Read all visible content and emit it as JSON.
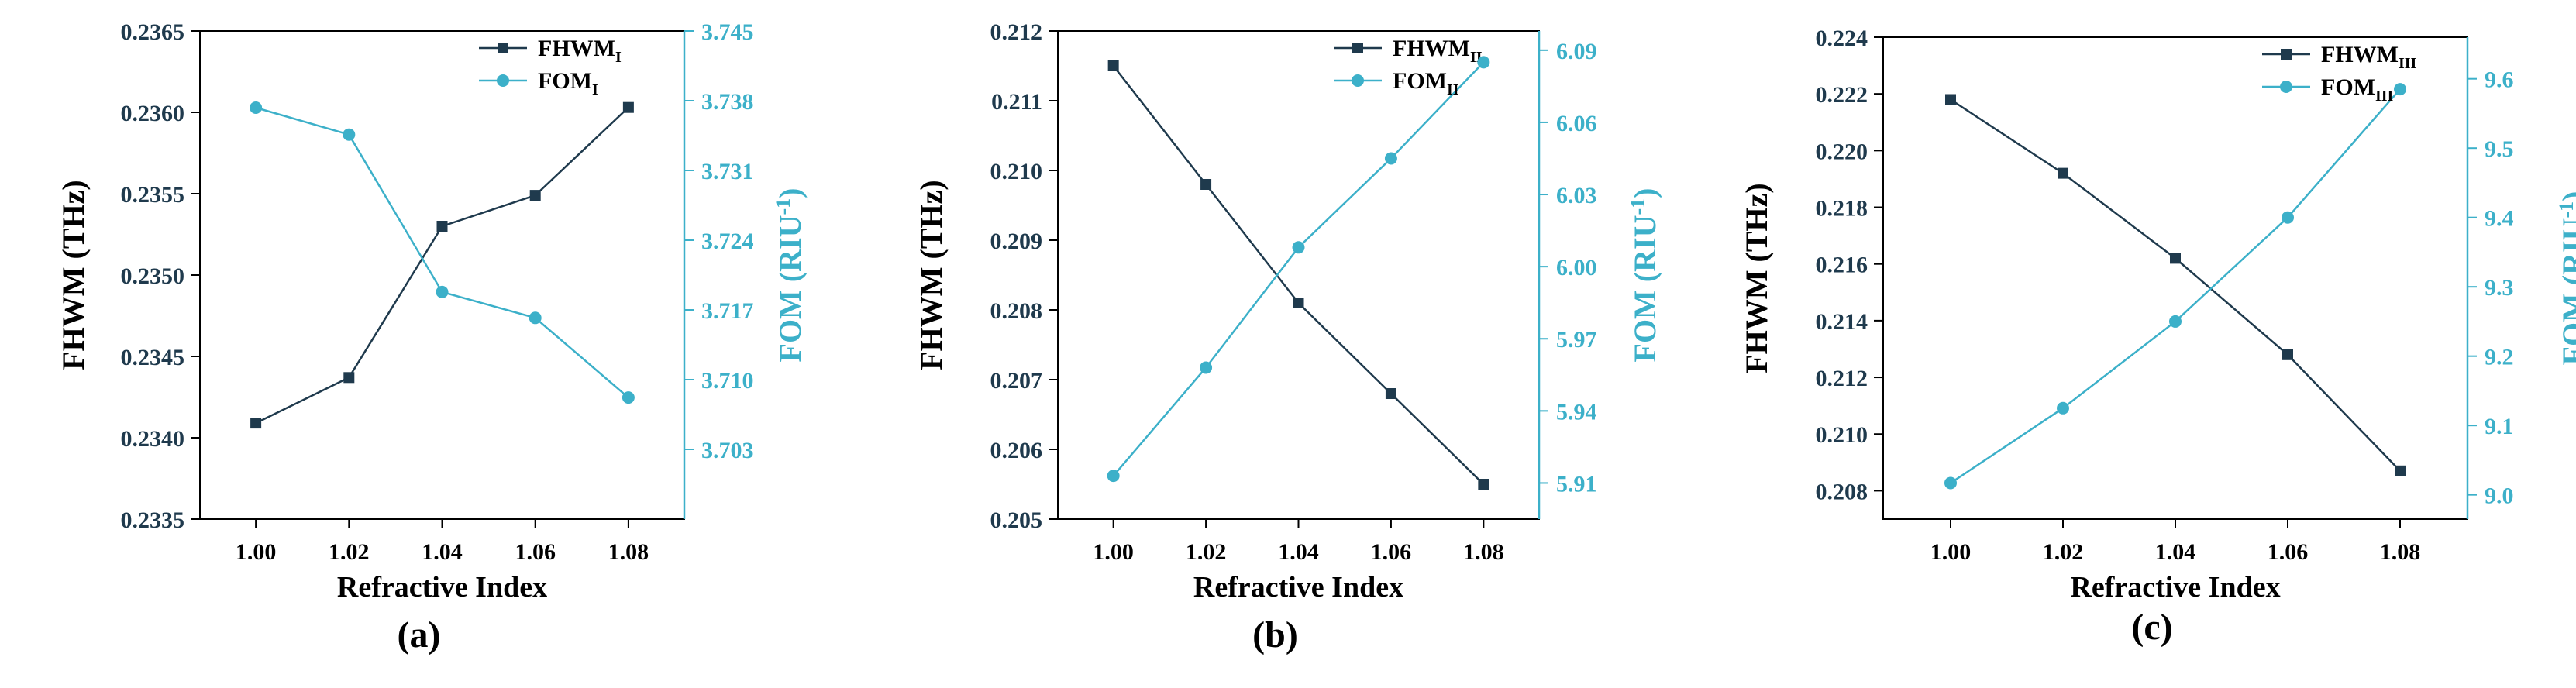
{
  "colors": {
    "left": "#1f3a4d",
    "right": "#3cb0c9",
    "axis": "#000000"
  },
  "chart_data": [
    {
      "type": "line",
      "panel_label": "(a)",
      "xlabel": "Refractive Index",
      "ylabel_left": "FHWM (THz)",
      "ylabel_right": "FOM (RIU",
      "ylabel_right_sup": "-1",
      "ylabel_right_end": ")",
      "x": [
        1.0,
        1.02,
        1.04,
        1.06,
        1.08
      ],
      "xticks": [
        "1.00",
        "1.02",
        "1.04",
        "1.06",
        "1.08"
      ],
      "xlim": [
        0.988,
        1.092
      ],
      "ylim_left": [
        0.2335,
        0.2365
      ],
      "yticks_left": [
        "0.2335",
        "0.2340",
        "0.2345",
        "0.2350",
        "0.2355",
        "0.2360",
        "0.2365"
      ],
      "ylim_right": [
        3.696,
        3.745
      ],
      "yticks_right": [
        "3.703",
        "3.710",
        "3.717",
        "3.724",
        "3.731",
        "3.738",
        "3.745"
      ],
      "series": [
        {
          "name": "FHWM",
          "sub": "I",
          "axis": "left",
          "marker": "square",
          "values": [
            0.23409,
            0.23437,
            0.2353,
            0.23549,
            0.23603
          ]
        },
        {
          "name": "FOM",
          "sub": "I",
          "axis": "right",
          "marker": "circle",
          "values": [
            3.7373,
            3.7346,
            3.7188,
            3.7162,
            3.7082
          ]
        }
      ]
    },
    {
      "type": "line",
      "panel_label": "(b)",
      "xlabel": "Refractive Index",
      "ylabel_left": "FHWM (THz)",
      "ylabel_right": "FOM (RIU",
      "ylabel_right_sup": "-1",
      "ylabel_right_end": ")",
      "x": [
        1.0,
        1.02,
        1.04,
        1.06,
        1.08
      ],
      "xticks": [
        "1.00",
        "1.02",
        "1.04",
        "1.06",
        "1.08"
      ],
      "xlim": [
        0.988,
        1.092
      ],
      "ylim_left": [
        0.205,
        0.212
      ],
      "yticks_left": [
        "0.205",
        "0.206",
        "0.207",
        "0.208",
        "0.209",
        "0.210",
        "0.211",
        "0.212"
      ],
      "ylim_right": [
        5.895,
        6.098
      ],
      "yticks_right": [
        "5.91",
        "5.94",
        "5.97",
        "6.00",
        "6.03",
        "6.06",
        "6.09"
      ],
      "series": [
        {
          "name": "FHWM",
          "sub": "II",
          "axis": "left",
          "marker": "square",
          "values": [
            0.2115,
            0.2098,
            0.2081,
            0.2068,
            0.2055
          ]
        },
        {
          "name": "FOM",
          "sub": "II",
          "axis": "right",
          "marker": "circle",
          "values": [
            5.913,
            5.958,
            6.008,
            6.045,
            6.085
          ]
        }
      ]
    },
    {
      "type": "line",
      "panel_label": "(c)",
      "xlabel": "Refractive Index",
      "ylabel_left": "FHWM (THz)",
      "ylabel_right": "FOM (RIU",
      "ylabel_right_sup": "-1",
      "ylabel_right_end": ")",
      "x": [
        1.0,
        1.02,
        1.04,
        1.06,
        1.08
      ],
      "xticks": [
        "1.00",
        "1.02",
        "1.04",
        "1.06",
        "1.08"
      ],
      "xlim": [
        0.988,
        1.092
      ],
      "ylim_left": [
        0.207,
        0.224
      ],
      "yticks_left": [
        "0.208",
        "0.210",
        "0.212",
        "0.214",
        "0.216",
        "0.218",
        "0.220",
        "0.222",
        "0.224"
      ],
      "ylim_right": [
        8.965,
        9.66
      ],
      "yticks_right": [
        "9.0",
        "9.1",
        "9.2",
        "9.3",
        "9.4",
        "9.5",
        "9.6"
      ],
      "series": [
        {
          "name": "FHWM",
          "sub": "III",
          "axis": "left",
          "marker": "square",
          "values": [
            0.2218,
            0.2192,
            0.2162,
            0.2128,
            0.2087
          ]
        },
        {
          "name": "FOM",
          "sub": "III",
          "axis": "right",
          "marker": "circle",
          "values": [
            9.017,
            9.125,
            9.25,
            9.4,
            9.585
          ]
        }
      ]
    }
  ]
}
